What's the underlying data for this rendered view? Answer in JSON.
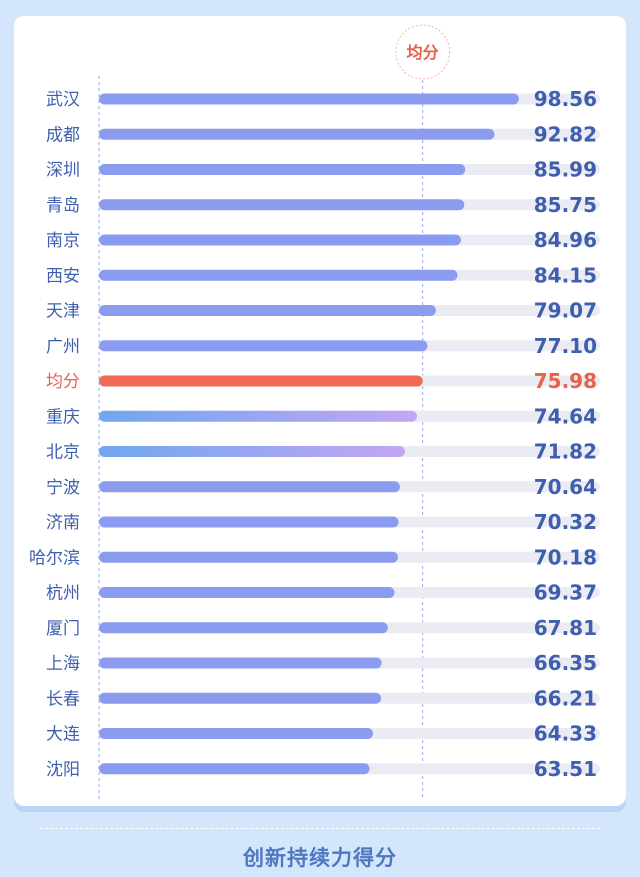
{
  "chart_data": {
    "type": "bar",
    "orientation": "horizontal",
    "title": "创新持续力得分",
    "avg_label": "均分",
    "categories": [
      "武汉",
      "成都",
      "深圳",
      "青岛",
      "南京",
      "西安",
      "天津",
      "广州",
      "均分",
      "重庆",
      "北京",
      "宁波",
      "济南",
      "哈尔滨",
      "杭州",
      "厦门",
      "上海",
      "长春",
      "大连",
      "沈阳"
    ],
    "values": [
      98.56,
      92.82,
      85.99,
      85.75,
      84.96,
      84.15,
      79.07,
      77.1,
      75.98,
      74.64,
      71.82,
      70.64,
      70.32,
      70.18,
      69.37,
      67.81,
      66.35,
      66.21,
      64.33,
      63.51
    ],
    "value_labels": [
      "98.56",
      "92.82",
      "85.99",
      "85.75",
      "84.96",
      "84.15",
      "79.07",
      "77.10",
      "75.98",
      "74.64",
      "71.82",
      "70.64",
      "70.32",
      "70.18",
      "69.37",
      "67.81",
      "66.35",
      "66.21",
      "64.33",
      "63.51"
    ],
    "average": 75.98,
    "xlim": [
      0,
      100
    ],
    "grid": false,
    "legend": "none",
    "colors": {
      "bar": "#8b9cf0",
      "bar_average": "#f06a55",
      "bar_gradient_start": "#6fa7f0",
      "bar_gradient_end": "#c3a6f3",
      "track": "#ebecf3",
      "label": "#3f5fae",
      "label_average": "#e9604b",
      "value": "#3f5fae",
      "value_average": "#e9604b",
      "guide": "#9aa8e0"
    }
  }
}
